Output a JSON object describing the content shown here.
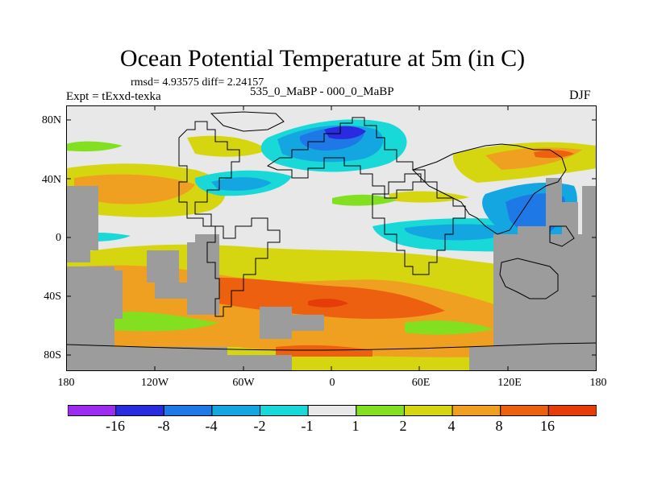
{
  "title": "Ocean Potential Temperature at 5m (in C)",
  "stats": "rmsd= 4.93575 diff= 2.24157",
  "expt": "Expt = tExxd-texka",
  "subtitle": "535_0_MaBP - 000_0_MaBP",
  "season": "DJF",
  "lat_labels": [
    "80N",
    "40N",
    "0",
    "40S",
    "80S"
  ],
  "lon_labels": [
    "180",
    "120W",
    "60W",
    "0",
    "60E",
    "120E",
    "180"
  ],
  "colorbar": {
    "labels": [
      "-16",
      "-8",
      "-4",
      "-2",
      "-1",
      "1",
      "2",
      "4",
      "8",
      "16"
    ],
    "colors": [
      "#9b2cf0",
      "#2a2ae0",
      "#1e78e6",
      "#14a6e0",
      "#18d8d8",
      "#e8e8e8",
      "#82e020",
      "#d6d610",
      "#f0a020",
      "#ec6010",
      "#e63c0a"
    ]
  },
  "land_color": "#9c9c9c"
}
